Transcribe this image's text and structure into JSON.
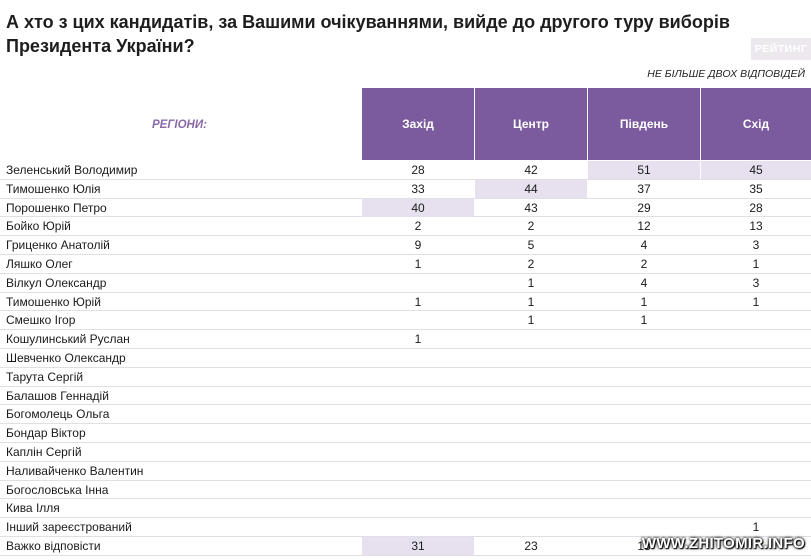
{
  "title": "А хто з цих кандидатів, за Вашими очікуваннями, вийде до другого туру виборів Президента України?",
  "brand": "РЕЙТИНГ",
  "note": "НЕ БІЛЬШЕ ДВОХ ВІДПОВІДЕЙ",
  "regions_label": "РЕГІОНИ:",
  "columns": [
    "Захід",
    "Центр",
    "Південь",
    "Схід"
  ],
  "accent_color": "#7b5a9d",
  "highlight_color": "#e7e1ef",
  "rows": [
    {
      "name": "Зеленський Володимир",
      "values": [
        "28",
        "42",
        "51",
        "45"
      ],
      "highlight": [
        false,
        false,
        true,
        true
      ]
    },
    {
      "name": "Тимошенко Юлія",
      "values": [
        "33",
        "44",
        "37",
        "35"
      ],
      "highlight": [
        false,
        true,
        false,
        false
      ]
    },
    {
      "name": "Порошенко Петро",
      "values": [
        "40",
        "43",
        "29",
        "28"
      ],
      "highlight": [
        true,
        false,
        false,
        false
      ]
    },
    {
      "name": "Бойко Юрій",
      "values": [
        "2",
        "2",
        "12",
        "13"
      ],
      "highlight": [
        false,
        false,
        false,
        false
      ]
    },
    {
      "name": "Гриценко Анатолій",
      "values": [
        "9",
        "5",
        "4",
        "3"
      ],
      "highlight": [
        false,
        false,
        false,
        false
      ]
    },
    {
      "name": "Ляшко Олег",
      "values": [
        "1",
        "2",
        "2",
        "1"
      ],
      "highlight": [
        false,
        false,
        false,
        false
      ]
    },
    {
      "name": "Вілкул Олександр",
      "values": [
        "",
        "1",
        "4",
        "3"
      ],
      "highlight": [
        false,
        false,
        false,
        false
      ]
    },
    {
      "name": "Тимошенко Юрій",
      "values": [
        "1",
        "1",
        "1",
        "1"
      ],
      "highlight": [
        false,
        false,
        false,
        false
      ]
    },
    {
      "name": "Смешко Ігор",
      "values": [
        "",
        "1",
        "1",
        ""
      ],
      "highlight": [
        false,
        false,
        false,
        false
      ]
    },
    {
      "name": "Кошулинський Руслан",
      "values": [
        "1",
        "",
        "",
        ""
      ],
      "highlight": [
        false,
        false,
        false,
        false
      ]
    },
    {
      "name": "Шевченко Олександр",
      "values": [
        "",
        "",
        "",
        ""
      ],
      "highlight": [
        false,
        false,
        false,
        false
      ]
    },
    {
      "name": "Тарута Сергій",
      "values": [
        "",
        "",
        "",
        ""
      ],
      "highlight": [
        false,
        false,
        false,
        false
      ]
    },
    {
      "name": "Балашов Геннадій",
      "values": [
        "",
        "",
        "",
        ""
      ],
      "highlight": [
        false,
        false,
        false,
        false
      ]
    },
    {
      "name": "Богомолець Ольга",
      "values": [
        "",
        "",
        "",
        ""
      ],
      "highlight": [
        false,
        false,
        false,
        false
      ]
    },
    {
      "name": "Бондар Віктор",
      "values": [
        "",
        "",
        "",
        ""
      ],
      "highlight": [
        false,
        false,
        false,
        false
      ]
    },
    {
      "name": "Каплін Сергій",
      "values": [
        "",
        "",
        "",
        ""
      ],
      "highlight": [
        false,
        false,
        false,
        false
      ]
    },
    {
      "name": "Наливайченко Валентин",
      "values": [
        "",
        "",
        "",
        ""
      ],
      "highlight": [
        false,
        false,
        false,
        false
      ]
    },
    {
      "name": "Богословська Інна",
      "values": [
        "",
        "",
        "",
        ""
      ],
      "highlight": [
        false,
        false,
        false,
        false
      ]
    },
    {
      "name": "Кива Ілля",
      "values": [
        "",
        "",
        "",
        ""
      ],
      "highlight": [
        false,
        false,
        false,
        false
      ]
    },
    {
      "name": "Інший зареєстрований",
      "values": [
        "",
        "",
        "",
        "1"
      ],
      "highlight": [
        false,
        false,
        false,
        false
      ]
    },
    {
      "name": "Важко відповісти",
      "values": [
        "31",
        "23",
        "18",
        ""
      ],
      "highlight": [
        true,
        false,
        false,
        false
      ]
    }
  ],
  "watermark": "WWW.ZHITOMIR.INFO"
}
